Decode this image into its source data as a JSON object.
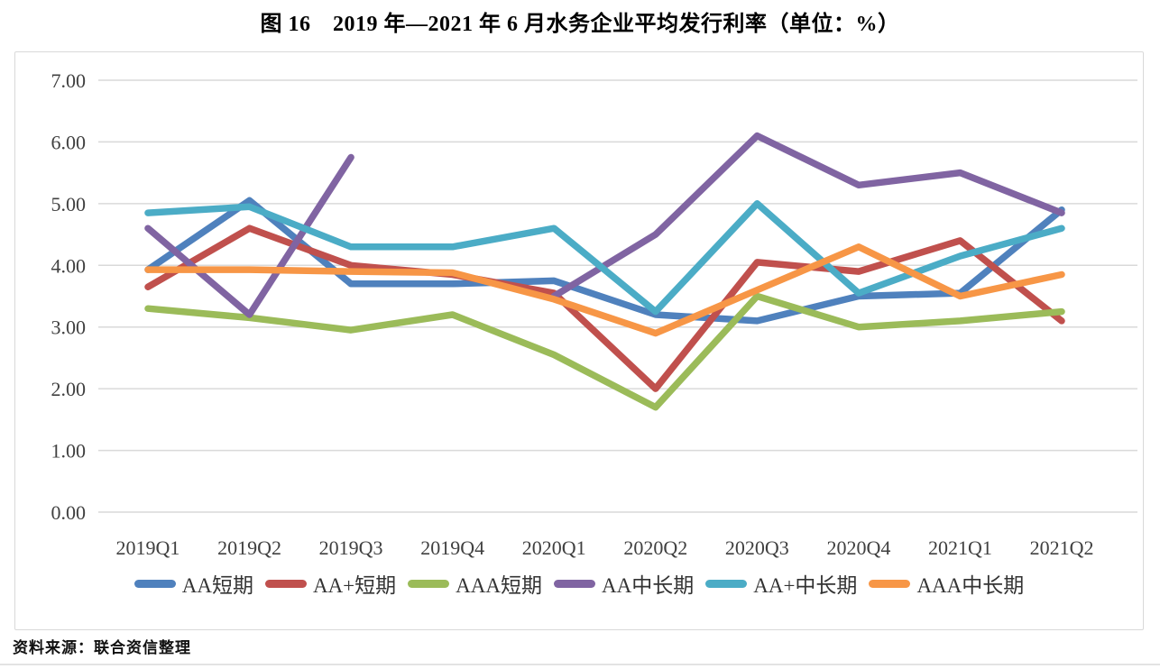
{
  "title": "图 16　2019 年—2021 年 6 月水务企业平均发行利率（单位：%）",
  "source": "资料来源：联合资信整理",
  "chart_data": {
    "type": "line",
    "title": "图 16　2019 年—2021 年 6 月水务企业平均发行利率（单位：%）",
    "xlabel": "",
    "ylabel": "",
    "ylim": [
      0.0,
      7.0
    ],
    "ytick_step": 1.0,
    "ytick_format": "0.00 to 7.00, two decimals",
    "ytick_labels": [
      "0.00",
      "1.00",
      "2.00",
      "3.00",
      "4.00",
      "5.00",
      "6.00",
      "7.00"
    ],
    "grid": true,
    "legend_position": "bottom",
    "categories": [
      "2019Q1",
      "2019Q2",
      "2019Q3",
      "2019Q4",
      "2020Q1",
      "2020Q2",
      "2020Q3",
      "2020Q4",
      "2021Q1",
      "2021Q2"
    ],
    "series": [
      {
        "name": "AA短期",
        "color": "#4F81BD",
        "values": [
          3.93,
          5.05,
          3.7,
          3.7,
          3.75,
          3.2,
          3.1,
          3.5,
          3.55,
          4.9
        ]
      },
      {
        "name": "AA+短期",
        "color": "#C0504D",
        "values": [
          3.65,
          4.6,
          4.0,
          3.85,
          3.55,
          2.0,
          4.05,
          3.9,
          4.4,
          3.1
        ]
      },
      {
        "name": "AAA短期",
        "color": "#9BBB59",
        "values": [
          3.3,
          3.15,
          2.95,
          3.2,
          2.55,
          1.7,
          3.5,
          3.0,
          3.1,
          3.25
        ]
      },
      {
        "name": "AA中长期",
        "color": "#8064A2",
        "values": [
          4.6,
          3.2,
          5.75,
          null,
          3.5,
          4.5,
          6.1,
          5.3,
          5.5,
          4.85
        ]
      },
      {
        "name": "AA+中长期",
        "color": "#4BACC6",
        "values": [
          4.85,
          4.95,
          4.3,
          4.3,
          4.6,
          3.25,
          5.0,
          3.55,
          4.15,
          4.6
        ]
      },
      {
        "name": "AAA中长期",
        "color": "#F79646",
        "values": [
          3.93,
          3.93,
          3.9,
          3.88,
          3.45,
          2.9,
          3.6,
          4.3,
          3.5,
          3.85
        ]
      }
    ],
    "style": {
      "gridline_color": "#d9d9d9",
      "tick_label_color": "#404040",
      "line_width": 7.5
    }
  }
}
